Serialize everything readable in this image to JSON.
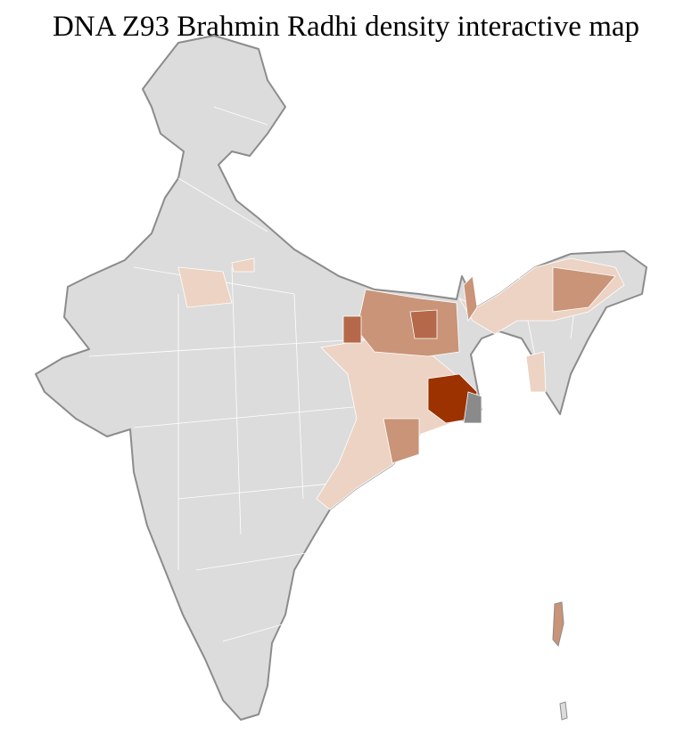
{
  "title": "DNA Z93 Brahmin Radhi density interactive map",
  "colors": {
    "base": "#dcdcdc",
    "border": "#8c8c8c",
    "district_line": "#ffffff",
    "low": "#ecd3c4",
    "medium": "#c99478",
    "high": "#b5694a",
    "highest": "#9b3200",
    "no_data": "#8a8a8a"
  }
}
